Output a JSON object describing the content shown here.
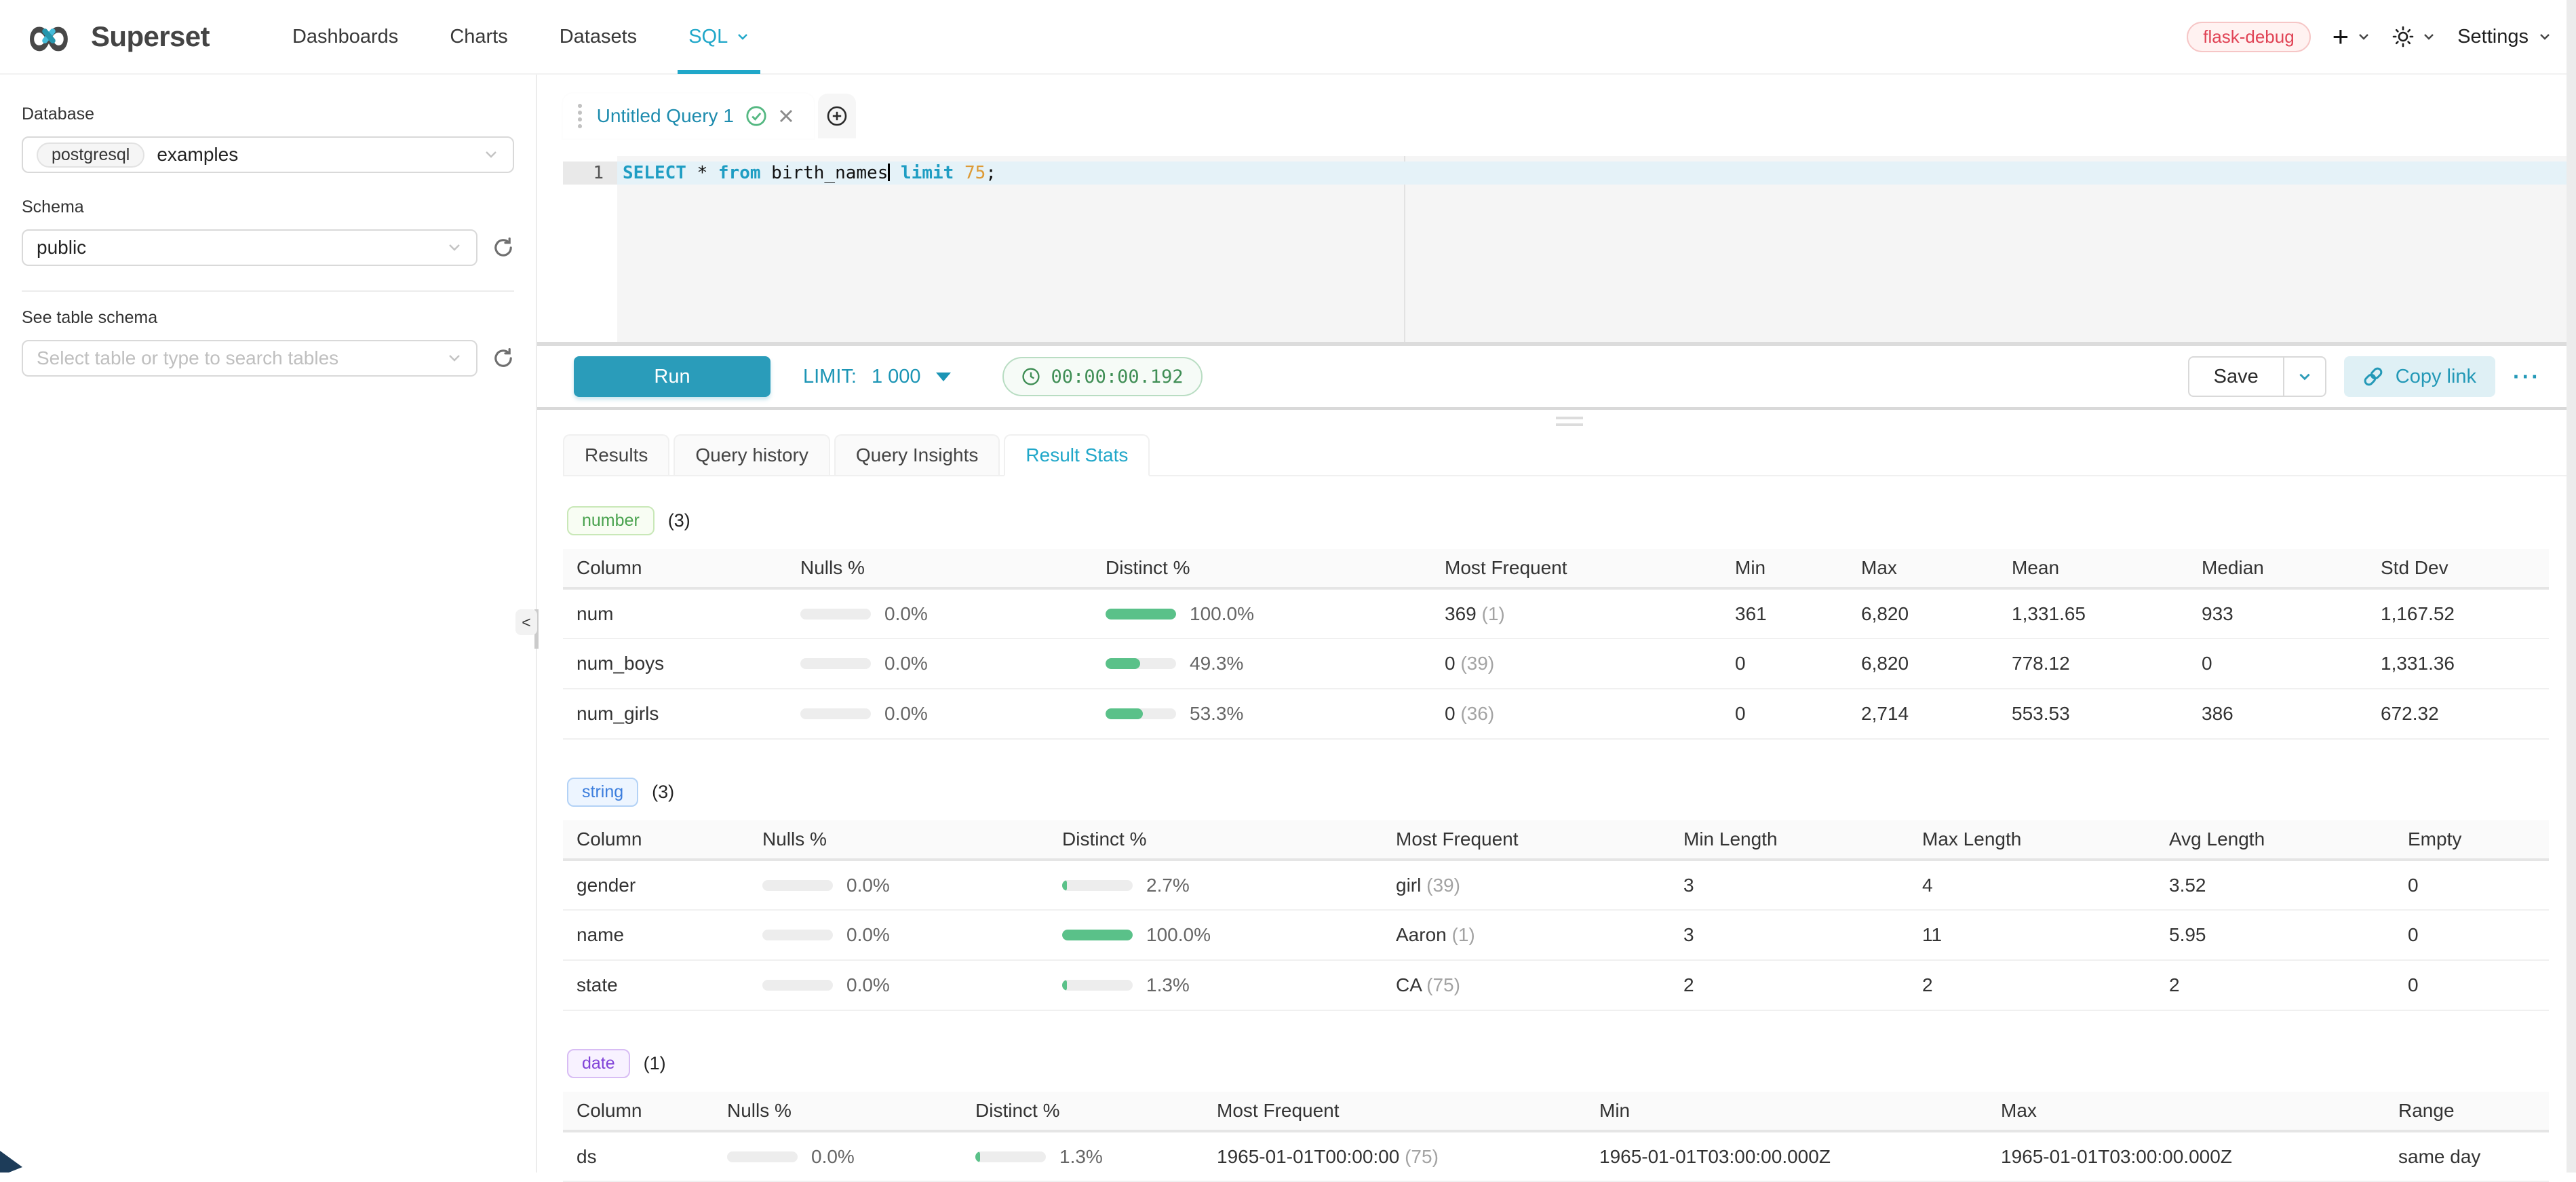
{
  "colors": {
    "primary": "#20a7c9",
    "bar_fill": "#5ac189",
    "error_red": "#e04355"
  },
  "navbar": {
    "brand": "Superset",
    "items": [
      {
        "label": "Dashboards",
        "active": false
      },
      {
        "label": "Charts",
        "active": false
      },
      {
        "label": "Datasets",
        "active": false
      },
      {
        "label": "SQL",
        "active": true
      }
    ],
    "environment_badge": "flask-debug",
    "plus_label": "+",
    "settings_label": "Settings"
  },
  "sidebar": {
    "database_label": "Database",
    "database_engine": "postgresql",
    "database_name": "examples",
    "schema_label": "Schema",
    "schema_value": "public",
    "table_schema_label": "See table schema",
    "table_placeholder": "Select table or type to search tables",
    "collapse_glyph": "<"
  },
  "editor": {
    "tab_title": "Untitled Query 1",
    "line_number": "1",
    "tokens": [
      {
        "type": "keyword",
        "text": "SELECT"
      },
      {
        "type": "text",
        "text": " * "
      },
      {
        "type": "keyword",
        "text": "from"
      },
      {
        "type": "text",
        "text": " birth_names"
      },
      {
        "type": "cursor",
        "text": ""
      },
      {
        "type": "text",
        "text": " "
      },
      {
        "type": "keyword",
        "text": "limit"
      },
      {
        "type": "text",
        "text": " "
      },
      {
        "type": "number",
        "text": "75"
      },
      {
        "type": "text",
        "text": ";"
      }
    ]
  },
  "toolbar": {
    "run_label": "Run",
    "limit_label": "LIMIT:",
    "limit_value": "1 000",
    "elapsed_time": "00:00:00.192",
    "save_label": "Save",
    "copy_link_label": "Copy link",
    "more_label": "···"
  },
  "result_tabs": [
    {
      "label": "Results",
      "active": false
    },
    {
      "label": "Query history",
      "active": false
    },
    {
      "label": "Query Insights",
      "active": false
    },
    {
      "label": "Result Stats",
      "active": true
    }
  ],
  "stats": {
    "sections": [
      {
        "type": "number",
        "count": "(3)",
        "columns": [
          "Column",
          "Nulls %",
          "Distinct %",
          "Most Frequent",
          "Min",
          "Max",
          "Mean",
          "Median",
          "Std Dev"
        ],
        "rows": [
          {
            "name": "num",
            "nulls_pct": "0.0%",
            "nulls_fill": 0,
            "distinct_pct": "100.0%",
            "distinct_fill": 100,
            "freq_value": "369",
            "freq_count": "(1)",
            "cells": [
              "361",
              "6,820",
              "1,331.65",
              "933",
              "1,167.52"
            ]
          },
          {
            "name": "num_boys",
            "nulls_pct": "0.0%",
            "nulls_fill": 0,
            "distinct_pct": "49.3%",
            "distinct_fill": 49.3,
            "freq_value": "0",
            "freq_count": "(39)",
            "cells": [
              "0",
              "6,820",
              "778.12",
              "0",
              "1,331.36"
            ]
          },
          {
            "name": "num_girls",
            "nulls_pct": "0.0%",
            "nulls_fill": 0,
            "distinct_pct": "53.3%",
            "distinct_fill": 53.3,
            "freq_value": "0",
            "freq_count": "(36)",
            "cells": [
              "0",
              "2,714",
              "553.53",
              "386",
              "672.32"
            ]
          }
        ]
      },
      {
        "type": "string",
        "count": "(3)",
        "columns": [
          "Column",
          "Nulls %",
          "Distinct %",
          "Most Frequent",
          "Min Length",
          "Max Length",
          "Avg Length",
          "Empty"
        ],
        "rows": [
          {
            "name": "gender",
            "nulls_pct": "0.0%",
            "nulls_fill": 0,
            "distinct_pct": "2.7%",
            "distinct_fill": 2.7,
            "freq_value": "girl",
            "freq_count": "(39)",
            "cells": [
              "3",
              "4",
              "3.52",
              "0"
            ]
          },
          {
            "name": "name",
            "nulls_pct": "0.0%",
            "nulls_fill": 0,
            "distinct_pct": "100.0%",
            "distinct_fill": 100,
            "freq_value": "Aaron",
            "freq_count": "(1)",
            "cells": [
              "3",
              "11",
              "5.95",
              "0"
            ]
          },
          {
            "name": "state",
            "nulls_pct": "0.0%",
            "nulls_fill": 0,
            "distinct_pct": "1.3%",
            "distinct_fill": 1.3,
            "freq_value": "CA",
            "freq_count": "(75)",
            "cells": [
              "2",
              "2",
              "2",
              "0"
            ]
          }
        ]
      },
      {
        "type": "date",
        "count": "(1)",
        "columns": [
          "Column",
          "Nulls %",
          "Distinct %",
          "Most Frequent",
          "Min",
          "Max",
          "Range"
        ],
        "rows": [
          {
            "name": "ds",
            "nulls_pct": "0.0%",
            "nulls_fill": 0,
            "distinct_pct": "1.3%",
            "distinct_fill": 1.3,
            "freq_value": "1965-01-01T00:00:00",
            "freq_count": "(75)",
            "cells": [
              "1965-01-01T03:00:00.000Z",
              "1965-01-01T03:00:00.000Z",
              "same day"
            ]
          }
        ]
      }
    ]
  }
}
